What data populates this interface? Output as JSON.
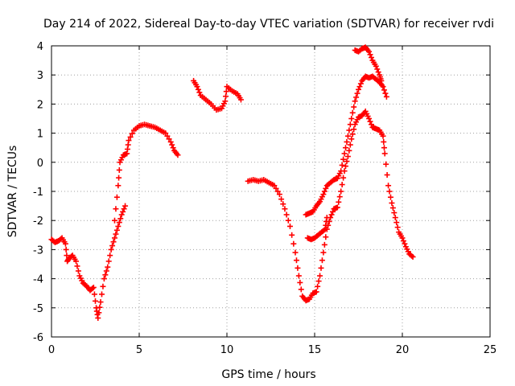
{
  "chart_data": {
    "type": "scatter",
    "title": "Day 214 of 2022, Sidereal Day-to-day VTEC variation (SDTVAR) for receiver rvdi",
    "xlabel": "GPS time / hours",
    "ylabel": "SDTVAR / TECUs",
    "xlim": [
      0,
      25
    ],
    "ylim": [
      -6,
      4
    ],
    "xticks": [
      "0",
      "5",
      "10",
      "15",
      "20",
      "25"
    ],
    "yticks": [
      "-6",
      "-5",
      "-4",
      "-3",
      "-2",
      "-1",
      "0",
      "1",
      "2",
      "3",
      "4"
    ],
    "grid": true,
    "marker": "+",
    "color": "#ff0000",
    "series": [
      {
        "name": "segment-1",
        "points": [
          [
            0.0,
            -2.65
          ],
          [
            0.2,
            -2.75
          ],
          [
            0.4,
            -2.7
          ],
          [
            0.6,
            -2.6
          ],
          [
            0.8,
            -2.8
          ],
          [
            0.9,
            -3.4
          ],
          [
            1.0,
            -3.3
          ],
          [
            1.2,
            -3.2
          ],
          [
            1.4,
            -3.4
          ],
          [
            1.6,
            -3.9
          ],
          [
            1.8,
            -4.15
          ],
          [
            2.0,
            -4.25
          ],
          [
            2.2,
            -4.4
          ],
          [
            2.4,
            -4.3
          ],
          [
            2.55,
            -5.0
          ],
          [
            2.65,
            -5.35
          ],
          [
            2.8,
            -4.8
          ],
          [
            3.0,
            -4.0
          ],
          [
            3.2,
            -3.6
          ],
          [
            3.4,
            -3.0
          ],
          [
            3.6,
            -2.6
          ],
          [
            3.8,
            -2.2
          ],
          [
            4.0,
            -1.8
          ],
          [
            4.2,
            -1.5
          ]
        ]
      },
      {
        "name": "segment-2",
        "points": [
          [
            3.6,
            -2.0
          ],
          [
            3.8,
            -0.8
          ],
          [
            3.9,
            0.0
          ],
          [
            4.1,
            0.25
          ],
          [
            4.3,
            0.3
          ],
          [
            4.4,
            0.75
          ],
          [
            4.7,
            1.1
          ],
          [
            5.0,
            1.25
          ],
          [
            5.3,
            1.3
          ],
          [
            5.6,
            1.25
          ],
          [
            5.9,
            1.2
          ],
          [
            6.2,
            1.1
          ],
          [
            6.5,
            1.0
          ],
          [
            6.8,
            0.7
          ],
          [
            7.0,
            0.4
          ],
          [
            7.2,
            0.25
          ]
        ]
      },
      {
        "name": "segment-3",
        "points": [
          [
            8.1,
            2.8
          ],
          [
            8.3,
            2.6
          ],
          [
            8.5,
            2.3
          ],
          [
            8.8,
            2.15
          ],
          [
            9.1,
            2.0
          ],
          [
            9.4,
            1.8
          ],
          [
            9.7,
            1.85
          ],
          [
            9.9,
            2.1
          ],
          [
            10.0,
            2.6
          ],
          [
            10.3,
            2.45
          ],
          [
            10.6,
            2.35
          ],
          [
            10.8,
            2.15
          ]
        ]
      },
      {
        "name": "segment-4",
        "points": [
          [
            11.2,
            -0.65
          ],
          [
            11.5,
            -0.6
          ],
          [
            11.8,
            -0.65
          ],
          [
            12.1,
            -0.6
          ],
          [
            12.4,
            -0.7
          ],
          [
            12.7,
            -0.8
          ],
          [
            13.0,
            -1.1
          ],
          [
            13.3,
            -1.6
          ],
          [
            13.6,
            -2.2
          ],
          [
            13.9,
            -3.1
          ],
          [
            14.1,
            -3.9
          ],
          [
            14.3,
            -4.6
          ],
          [
            14.5,
            -4.75
          ],
          [
            14.7,
            -4.7
          ],
          [
            14.9,
            -4.5
          ],
          [
            15.1,
            -4.45
          ],
          [
            15.3,
            -3.9
          ],
          [
            15.5,
            -3.1
          ],
          [
            15.7,
            -2.3
          ],
          [
            15.9,
            -1.9
          ],
          [
            16.1,
            -1.6
          ],
          [
            16.3,
            -1.55
          ],
          [
            16.5,
            -1.0
          ],
          [
            16.7,
            -0.3
          ],
          [
            16.9,
            0.2
          ],
          [
            17.1,
            0.8
          ],
          [
            17.3,
            1.3
          ],
          [
            17.5,
            1.55
          ],
          [
            17.7,
            1.6
          ],
          [
            17.9,
            1.75
          ],
          [
            18.1,
            1.5
          ],
          [
            18.3,
            1.2
          ],
          [
            18.5,
            1.15
          ],
          [
            18.7,
            1.1
          ],
          [
            18.9,
            0.9
          ],
          [
            19.0,
            0.3
          ],
          [
            19.2,
            -0.8
          ],
          [
            19.4,
            -1.4
          ],
          [
            19.6,
            -1.9
          ],
          [
            19.8,
            -2.4
          ],
          [
            20.0,
            -2.6
          ],
          [
            20.2,
            -2.9
          ],
          [
            20.4,
            -3.15
          ],
          [
            20.6,
            -3.25
          ]
        ]
      },
      {
        "name": "segment-5",
        "points": [
          [
            14.5,
            -1.8
          ],
          [
            14.7,
            -1.75
          ],
          [
            14.9,
            -1.7
          ],
          [
            15.1,
            -1.5
          ],
          [
            15.3,
            -1.35
          ],
          [
            15.5,
            -1.1
          ],
          [
            15.7,
            -0.8
          ],
          [
            15.9,
            -0.7
          ],
          [
            16.1,
            -0.6
          ],
          [
            16.3,
            -0.55
          ],
          [
            16.5,
            -0.3
          ],
          [
            16.7,
            0.3
          ],
          [
            16.9,
            0.9
          ],
          [
            17.1,
            1.5
          ],
          [
            17.3,
            2.1
          ],
          [
            17.5,
            2.5
          ],
          [
            17.7,
            2.8
          ],
          [
            17.9,
            2.95
          ],
          [
            18.1,
            2.9
          ],
          [
            18.3,
            2.95
          ],
          [
            18.5,
            2.85
          ],
          [
            18.7,
            2.75
          ],
          [
            18.9,
            2.6
          ],
          [
            19.1,
            2.25
          ]
        ]
      },
      {
        "name": "segment-6",
        "points": [
          [
            14.6,
            -2.6
          ],
          [
            14.8,
            -2.65
          ],
          [
            15.0,
            -2.6
          ],
          [
            15.2,
            -2.5
          ],
          [
            15.4,
            -2.4
          ],
          [
            15.6,
            -2.3
          ],
          [
            15.7,
            -1.9
          ]
        ]
      },
      {
        "name": "segment-7",
        "points": [
          [
            17.3,
            3.85
          ],
          [
            17.5,
            3.8
          ],
          [
            17.7,
            3.9
          ],
          [
            17.9,
            3.95
          ],
          [
            18.1,
            3.8
          ],
          [
            18.3,
            3.5
          ],
          [
            18.5,
            3.3
          ],
          [
            18.7,
            3.0
          ],
          [
            18.8,
            2.8
          ]
        ]
      }
    ]
  }
}
